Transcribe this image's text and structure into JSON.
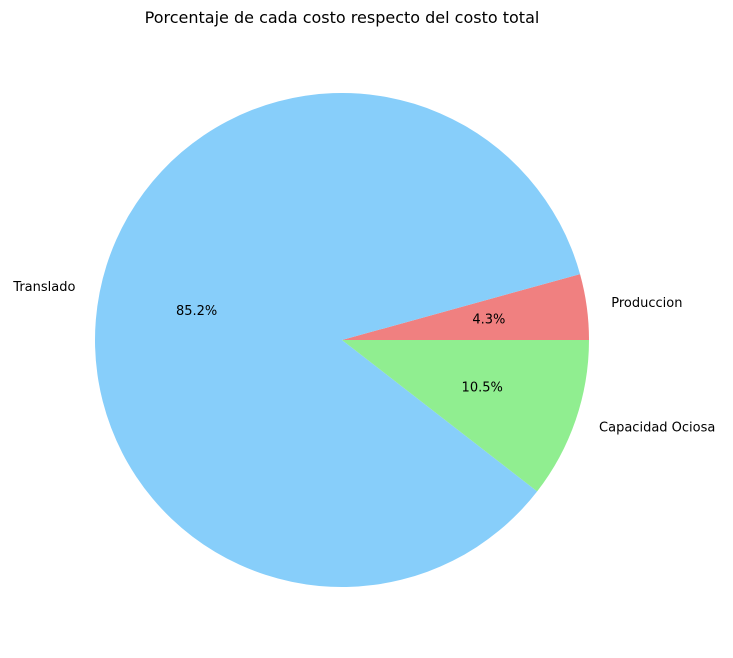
{
  "chart_data": {
    "type": "pie",
    "title": "Porcentaje de cada costo respecto del costo total",
    "start_angle": 0,
    "direction": "counterclockwise",
    "slices": [
      {
        "label": "Produccion",
        "value": 4.3,
        "pct_label": "4.3%",
        "color": "#F08080"
      },
      {
        "label": "Translado",
        "value": 85.2,
        "pct_label": "85.2%",
        "color": "#87CEFA"
      },
      {
        "label": "Capacidad Ociosa",
        "value": 10.5,
        "pct_label": "10.5%",
        "color": "#90EE90"
      }
    ]
  }
}
